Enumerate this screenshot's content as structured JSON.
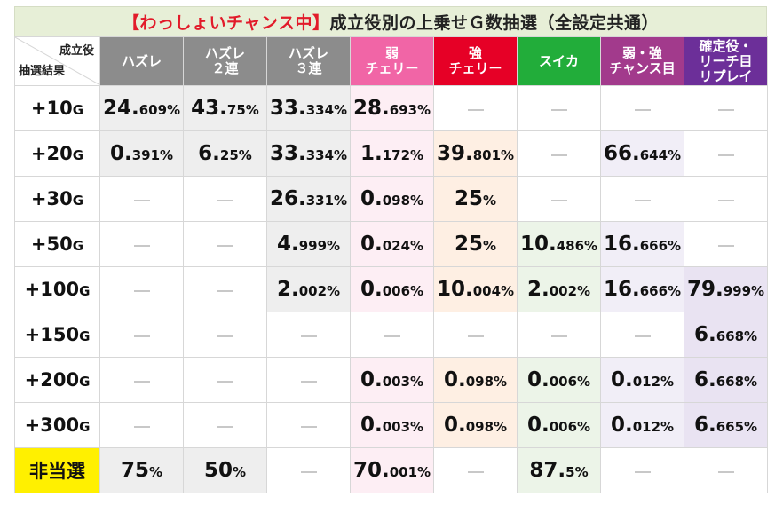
{
  "title": {
    "bracket": "【わっしょいチャンス中】",
    "rest": "成立役別の上乗せＧ数抽選（全設定共通）"
  },
  "corner": {
    "top_right": "成立役",
    "bottom_left": "抽選結果"
  },
  "columns": [
    {
      "line1": "ハズレ",
      "line2": "",
      "color": "#8c8c8c"
    },
    {
      "line1": "ハズレ",
      "line2": "２連",
      "color": "#8c8c8c"
    },
    {
      "line1": "ハズレ",
      "line2": "３連",
      "color": "#8c8c8c"
    },
    {
      "line1": "弱",
      "line2": "チェリー",
      "color": "#f165a6"
    },
    {
      "line1": "強",
      "line2": "チェリー",
      "color": "#e60026"
    },
    {
      "line1": "スイカ",
      "line2": "",
      "color": "#22ad3a"
    },
    {
      "line1": "弱・強",
      "line2": "チャンス目",
      "color": "#a23a8c"
    },
    {
      "line1": "確定役・",
      "line2": "リーチ目",
      "line3": "リプレイ",
      "color": "#6c2f99"
    }
  ],
  "rows": [
    {
      "label": "+10",
      "unit": "G",
      "cells": [
        [
          "24.",
          "609%"
        ],
        [
          "43.",
          "75%"
        ],
        [
          "33.",
          "334%"
        ],
        [
          "28.",
          "693%"
        ],
        null,
        null,
        null,
        null
      ]
    },
    {
      "label": "+20",
      "unit": "G",
      "cells": [
        [
          "0.",
          "391%"
        ],
        [
          "6.",
          "25%"
        ],
        [
          "33.",
          "334%"
        ],
        [
          "1.",
          "172%"
        ],
        [
          "39.",
          "801%"
        ],
        null,
        [
          "66.",
          "644%"
        ],
        null
      ]
    },
    {
      "label": "+30",
      "unit": "G",
      "cells": [
        null,
        null,
        [
          "26.",
          "331%"
        ],
        [
          "0.",
          "098%"
        ],
        [
          "25",
          "%"
        ],
        null,
        null,
        null
      ]
    },
    {
      "label": "+50",
      "unit": "G",
      "cells": [
        null,
        null,
        [
          "4.",
          "999%"
        ],
        [
          "0.",
          "024%"
        ],
        [
          "25",
          "%"
        ],
        [
          "10.",
          "486%"
        ],
        [
          "16.",
          "666%"
        ],
        null
      ]
    },
    {
      "label": "+100",
      "unit": "G",
      "cells": [
        null,
        null,
        [
          "2.",
          "002%"
        ],
        [
          "0.",
          "006%"
        ],
        [
          "10.",
          "004%"
        ],
        [
          "2.",
          "002%"
        ],
        [
          "16.",
          "666%"
        ],
        [
          "79.",
          "999%"
        ]
      ]
    },
    {
      "label": "+150",
      "unit": "G",
      "cells": [
        null,
        null,
        null,
        null,
        null,
        null,
        null,
        [
          "6.",
          "668%"
        ]
      ]
    },
    {
      "label": "+200",
      "unit": "G",
      "cells": [
        null,
        null,
        null,
        [
          "0.",
          "003%"
        ],
        [
          "0.",
          "098%"
        ],
        [
          "0.",
          "006%"
        ],
        [
          "0.",
          "012%"
        ],
        [
          "6.",
          "668%"
        ]
      ]
    },
    {
      "label": "+300",
      "unit": "G",
      "cells": [
        null,
        null,
        null,
        [
          "0.",
          "003%"
        ],
        [
          "0.",
          "098%"
        ],
        [
          "0.",
          "006%"
        ],
        [
          "0.",
          "012%"
        ],
        [
          "6.",
          "665%"
        ]
      ]
    },
    {
      "label": "非当選",
      "unit": "",
      "miss": true,
      "cells": [
        [
          "75",
          "%"
        ],
        [
          "50",
          "%"
        ],
        null,
        [
          "70.",
          "001%"
        ],
        null,
        [
          "87.",
          "5%"
        ],
        null,
        null
      ]
    }
  ],
  "cell_colors": [
    [
      "gray",
      "gray",
      "gray",
      "pink",
      "white",
      "white",
      "white",
      "white"
    ],
    [
      "gray",
      "gray",
      "gray",
      "pink",
      "peach",
      "white",
      "lav",
      "white"
    ],
    [
      "white",
      "white",
      "gray",
      "pink",
      "peach",
      "white",
      "white",
      "white"
    ],
    [
      "white",
      "white",
      "gray",
      "pink",
      "peach",
      "green",
      "lav",
      "white"
    ],
    [
      "white",
      "white",
      "gray",
      "pink",
      "peach",
      "green",
      "lav",
      "purp"
    ],
    [
      "white",
      "white",
      "white",
      "white",
      "white",
      "white",
      "white",
      "purp"
    ],
    [
      "white",
      "white",
      "white",
      "pink",
      "peach",
      "green",
      "lav",
      "purp"
    ],
    [
      "white",
      "white",
      "white",
      "pink",
      "peach",
      "green",
      "lav",
      "purp"
    ],
    [
      "gray",
      "gray",
      "white",
      "pink",
      "white",
      "green",
      "white",
      "white"
    ]
  ]
}
